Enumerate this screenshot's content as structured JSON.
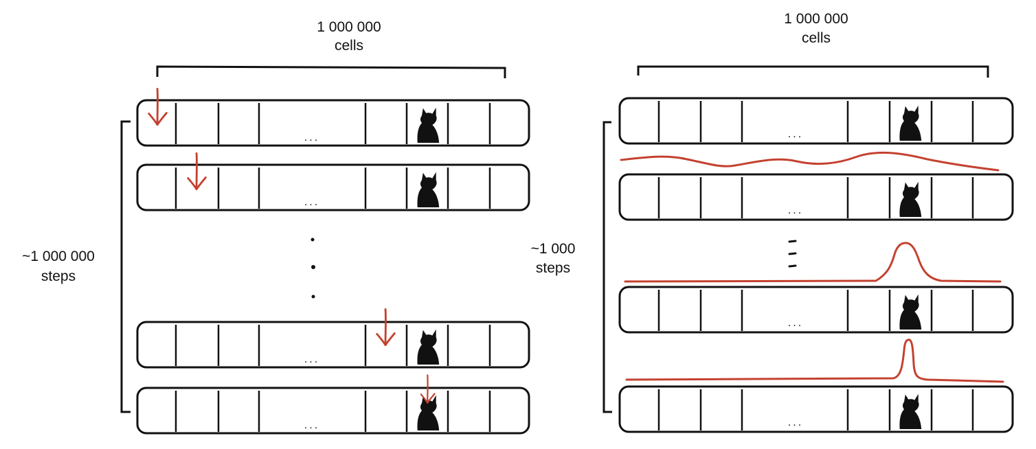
{
  "colors": {
    "ink": "#111111",
    "accent": "#c4412f",
    "background": "#ffffff"
  },
  "left_panel": {
    "width_label_line1": "1 000 000",
    "width_label_line2": "cells",
    "steps_label_line1": "~1 000 000",
    "steps_label_line2": "steps",
    "cell_ellipsis": "...",
    "icon": "cat-silhouette-icon",
    "marker": "red-down-arrow-icon"
  },
  "right_panel": {
    "width_label_line1": "1 000 000",
    "width_label_line2": "cells",
    "steps_label_line1": "~1 000",
    "steps_label_line2": "steps",
    "cell_ellipsis": "...",
    "icon": "cat-silhouette-icon",
    "marker": "red-probability-curve"
  }
}
